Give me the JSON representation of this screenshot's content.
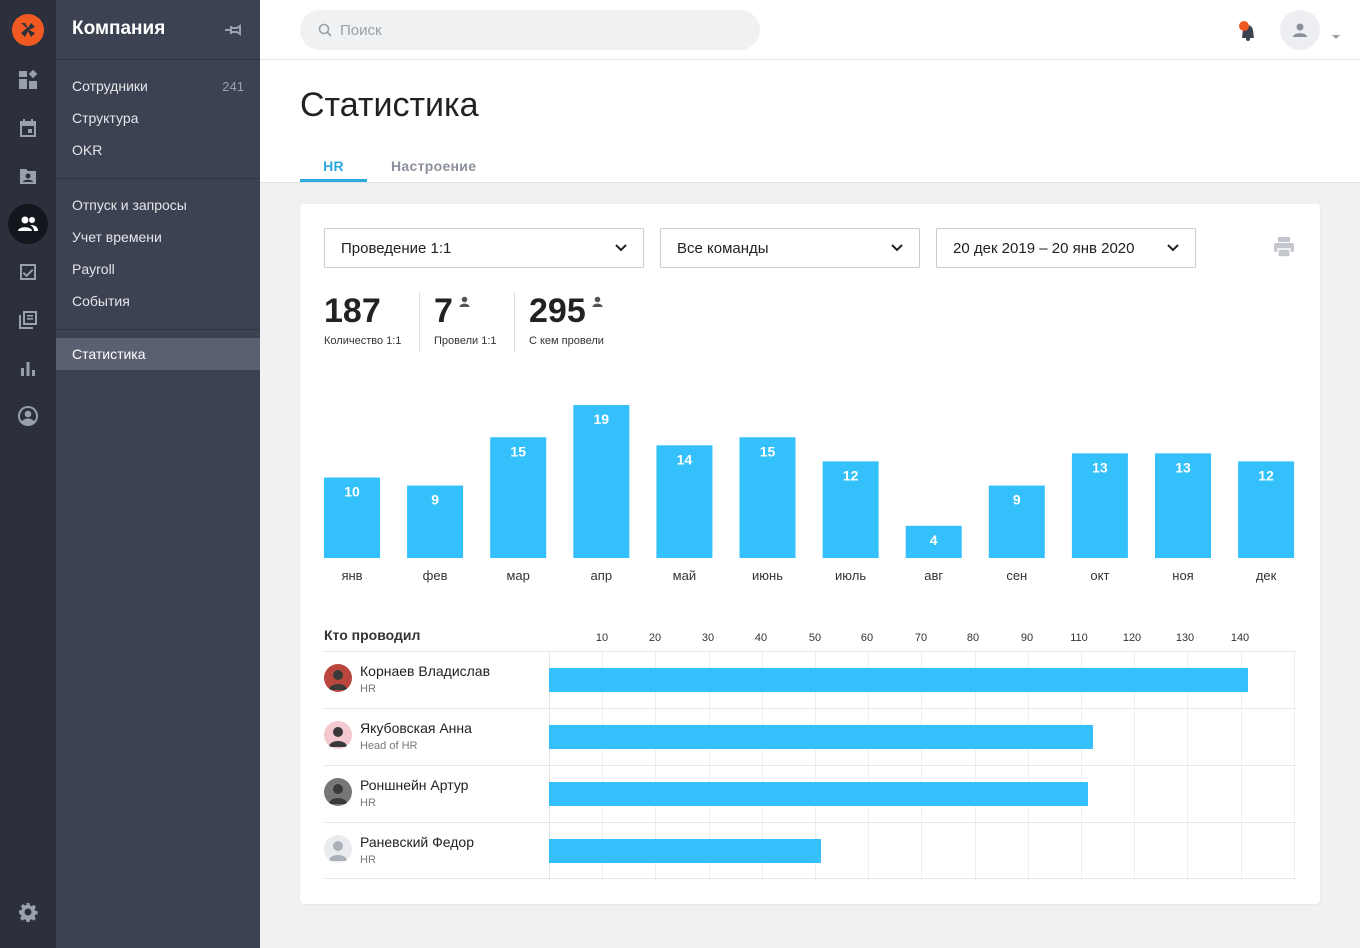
{
  "sidebar": {
    "title": "Компания",
    "group1": [
      {
        "label": "Сотрудники",
        "count": "241"
      },
      {
        "label": "Структура",
        "count": ""
      },
      {
        "label": "OKR",
        "count": ""
      }
    ],
    "group2": [
      {
        "label": "Отпуск и запросы"
      },
      {
        "label": "Учет времени"
      },
      {
        "label": "Payroll"
      },
      {
        "label": "События"
      }
    ],
    "group3": [
      {
        "label": "Статистика"
      }
    ]
  },
  "rail_icons": [
    "dashboard-icon",
    "calendar-icon",
    "contacts-icon",
    "people-icon",
    "tasks-icon",
    "library-icon",
    "stats-icon",
    "profile-icon",
    "settings-icon"
  ],
  "search": {
    "placeholder": "Поиск"
  },
  "page": {
    "title": "Статистика"
  },
  "tabs": [
    {
      "label": "HR"
    },
    {
      "label": "Настроение"
    }
  ],
  "filters": {
    "type": "Проведение 1:1",
    "team": "Все команды",
    "range": "20 дек 2019 – 20 янв 2020"
  },
  "stats": [
    {
      "value": "187",
      "label": "Количество 1:1"
    },
    {
      "value": "7",
      "label": "Провели 1:1"
    },
    {
      "value": "295",
      "label": "С кем провели"
    }
  ],
  "chart_data": {
    "type": "bar",
    "categories": [
      "янв",
      "фев",
      "мар",
      "апр",
      "май",
      "июнь",
      "июль",
      "авг",
      "сен",
      "окт",
      "ноя",
      "дек"
    ],
    "values": [
      10,
      9,
      15,
      19,
      14,
      15,
      12,
      4,
      9,
      13,
      13,
      12
    ],
    "title": "",
    "color": "#33c0fb"
  },
  "who": {
    "title": "Кто проводил",
    "ticks": [
      10,
      20,
      30,
      40,
      50,
      60,
      70,
      80,
      90,
      110,
      120,
      130,
      140
    ],
    "max": 140,
    "rows": [
      {
        "name": "Корнаев Владислав",
        "role": "HR",
        "value": 131
      },
      {
        "name": "Якубовская Анна",
        "role": "Head of HR",
        "value": 102
      },
      {
        "name": "Роншнейн Артур",
        "role": "HR",
        "value": 101
      },
      {
        "name": "Раневский Федор",
        "role": "HR",
        "value": 51
      }
    ]
  },
  "colors": {
    "accent": "#2ca9e1",
    "bar": "#33c0fb",
    "logo": "#f05a22",
    "rail": "#2b303c",
    "sidebar": "#3c4252"
  }
}
